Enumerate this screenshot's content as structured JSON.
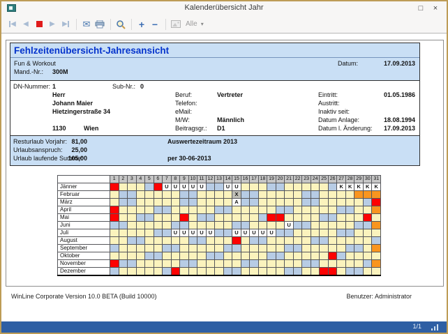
{
  "window": {
    "title": "Kalenderübersicht Jahr",
    "maximize_glyph": "□",
    "close_glyph": "×"
  },
  "toolbar": {
    "alle_label": "Alle",
    "caret_glyph": "▾",
    "icons": {
      "first-page": "|◀",
      "prev-page": "◀",
      "stop": "red-square",
      "next-page": "▶",
      "last-page": "▶|",
      "send-mail": "✉",
      "print": "printer-shape",
      "zoom": "magnifier-shape",
      "zoom-in": "+",
      "zoom-out": "−",
      "image-preview": "picture-shape"
    }
  },
  "report": {
    "title": "Fehlzeitenübersicht-Jahresansicht",
    "company": "Fun & Workout",
    "mand_label": "Mand.-Nr.:",
    "mand_value": "300M",
    "datum_label": "Datum:",
    "datum_value": "17.09.2013",
    "employee": {
      "dn_label": "DN-Nummer:",
      "dn_value": "1",
      "sub_label": "Sub-Nr.:",
      "sub_value": "0",
      "salutation": "Herr",
      "name": "Johann Maier",
      "street": "Hietzingerstraße 34",
      "plz": "1130",
      "city": "Wien",
      "beruf_label": "Beruf:",
      "beruf_value": "Vertreter",
      "telefon_label": "Telefon:",
      "telefon_value": "",
      "email_label": "eMail:",
      "email_value": "",
      "mw_label": "M/W:",
      "mw_value": "Männlich",
      "beitragsgr_label": "Beitragsgr.:",
      "beitragsgr_value": "D1",
      "eintritt_label": "Eintritt:",
      "eintritt_value": "01.05.1986",
      "austritt_label": "Austritt:",
      "austritt_value": "",
      "inaktiv_label": "Inaktiv seit:",
      "inaktiv_value": "",
      "anlage_label": "Datum Anlage:",
      "anlage_value": "18.08.1994",
      "aenderung_label": "Datum l. Änderung:",
      "aenderung_value": "17.09.2013"
    },
    "urlaub": {
      "rows": [
        {
          "label": "Resturlaub Vorjahr:",
          "value": "81,00"
        },
        {
          "label": "Urlaubsanspruch:",
          "value": "25,00"
        },
        {
          "label": "Urlaub laufende Summe:",
          "value": "105,00"
        }
      ],
      "zeitraum": "Auswertezeitraum 2013",
      "per": "per 30-06-2013"
    },
    "footer_left": "WinLine Corporate Version 10.0 BETA (Build 10000)",
    "footer_right": "Benutzer: Administrator"
  },
  "calendar": {
    "day_headers": [
      1,
      2,
      3,
      4,
      5,
      6,
      7,
      8,
      9,
      10,
      11,
      12,
      13,
      14,
      15,
      16,
      17,
      18,
      19,
      20,
      21,
      22,
      23,
      24,
      25,
      26,
      27,
      28,
      29,
      30,
      31
    ],
    "cell_types": {
      "D": {
        "meaning": "workday",
        "bg": "#FBF3BD",
        "label": ""
      },
      "W": {
        "meaning": "weekend",
        "bg": "#B7CCE5",
        "label": ""
      },
      "H": {
        "meaning": "holiday",
        "bg": "#FD0202",
        "label": ""
      },
      "N": {
        "meaning": "no-such-day",
        "bg": "#F9951F",
        "label": ""
      },
      "U": {
        "meaning": "vacation",
        "bg": "#FFFFFF",
        "label": "U"
      },
      "K": {
        "meaning": "sick",
        "bg": "#FFFFFF",
        "label": "K"
      },
      "A": {
        "meaning": "absence-a",
        "bg": "#FFFFFF",
        "label": "A"
      },
      "X": {
        "meaning": "absence-x",
        "bg": "#BFBFB7",
        "label": "X"
      }
    },
    "months": [
      {
        "name": "Jänner",
        "cells": "HDDDWHUUUUUWWUUDDDWWDDDDDWKKKKK"
      },
      {
        "name": "Februar",
        "cells": "DWWDDDDDWWDDDDXWWDDDDDWWDDDDNNN"
      },
      {
        "name": "März",
        "cells": "DWWDDDDDWWDDDDAWWDDDDDWWDDDDDWH"
      },
      {
        "name": "April",
        "cells": "HDDDDWWDDDDDWWDDDDDWWDDDDDWWDDN"
      },
      {
        "name": "Mai",
        "cells": "HDDWWDDDHDWWDDDDDWHHDDDDWWDDDHD"
      },
      {
        "name": "Juni",
        "cells": "WWDDDDDWWDDDDDWWDDDDUWWDDDDDWWN"
      },
      {
        "name": "Juli",
        "cells": "DDDDDWWUUUUUWWUUUUUWWDDDDDWWDDD"
      },
      {
        "name": "August",
        "cells": "DDWWDDDDDWWDDDHDWWDDDDDWWDDDDDW"
      },
      {
        "name": "September",
        "cells": "WDDDDDWWDDDDDWWDDDDDWWDDDDDWWDN"
      },
      {
        "name": "Oktober",
        "cells": "DDDDWWDDDDDWWDDDDDWWDDDDDHWDDDD"
      },
      {
        "name": "November",
        "cells": "HWWDDDDDWWDDDDDWWDDDDDWWDDDDDWN"
      },
      {
        "name": "Dezember",
        "cells": "WDDDDDWHDDDDDWWDDDDDWWDDHHDWWDD"
      }
    ]
  },
  "statusbar": {
    "pages": "1/1"
  }
}
